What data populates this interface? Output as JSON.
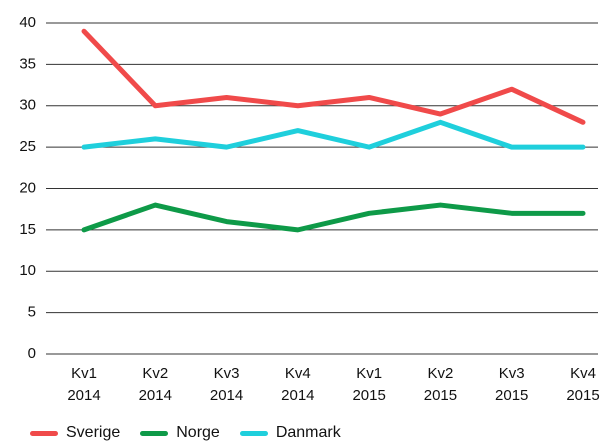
{
  "chart_data": {
    "type": "line",
    "categories": [
      "Kv1 2014",
      "Kv2 2014",
      "Kv3 2014",
      "Kv4 2014",
      "Kv1 2015",
      "Kv2 2015",
      "Kv3 2015",
      "Kv4 2015"
    ],
    "series": [
      {
        "name": "Sverige",
        "color": "#f04a4a",
        "values": [
          39,
          30,
          31,
          30,
          31,
          29,
          32,
          28
        ]
      },
      {
        "name": "Norge",
        "color": "#0e9a48",
        "values": [
          15,
          18,
          16,
          15,
          17,
          18,
          17,
          17
        ]
      },
      {
        "name": "Danmark",
        "color": "#1fcfdc",
        "values": [
          25,
          26,
          25,
          27,
          25,
          28,
          25,
          25
        ]
      }
    ],
    "ylim": [
      0,
      40
    ],
    "yticks": [
      0,
      5,
      10,
      15,
      20,
      25,
      30,
      35,
      40
    ],
    "grid": true,
    "legend": "bottom"
  }
}
